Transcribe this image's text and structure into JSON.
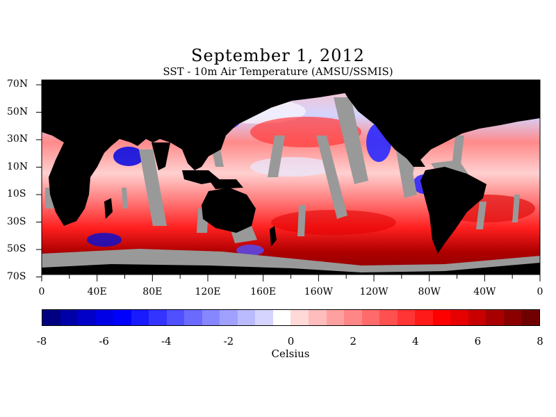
{
  "title": "September 1, 2012",
  "subtitle": "SST - 10m Air Temperature (AMSU/SSMIS)",
  "lat_labels": [
    "70N",
    "50N",
    "30N",
    "10N",
    "10S",
    "30S",
    "50S",
    "70S"
  ],
  "lon_labels": [
    "0",
    "40E",
    "80E",
    "120E",
    "160E",
    "160W",
    "120W",
    "80W",
    "40W",
    "0"
  ],
  "colorbar": {
    "ticks": [
      "-8",
      "-6",
      "-4",
      "-2",
      "0",
      "2",
      "4",
      "6",
      "8"
    ],
    "unit": "Celsius",
    "colors": [
      "#000080",
      "#0000a8",
      "#0000c8",
      "#0000e6",
      "#0000ff",
      "#1a1aff",
      "#3434ff",
      "#5050ff",
      "#6a6aff",
      "#8686ff",
      "#a0a0ff",
      "#babaff",
      "#d4d4ff",
      "#ffffff",
      "#ffd8d8",
      "#ffbcbc",
      "#ffa0a0",
      "#ff8686",
      "#ff6a6a",
      "#ff5050",
      "#ff3434",
      "#ff1a1a",
      "#ff0000",
      "#e60000",
      "#c80000",
      "#a80000",
      "#8a0000",
      "#700000"
    ]
  },
  "colors": {
    "land": "#000000",
    "no_data": "#999999"
  }
}
